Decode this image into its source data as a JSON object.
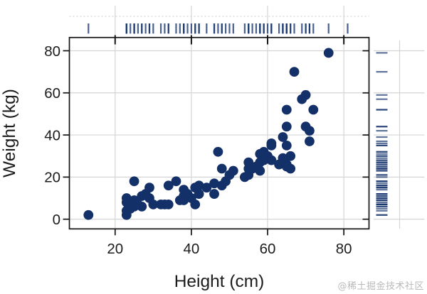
{
  "chart_data": {
    "type": "scatter",
    "title": "",
    "xlabel": "Height (cm)",
    "ylabel": "Weight (kg)",
    "x_ticks": [
      20,
      40,
      60,
      80
    ],
    "y_ticks": [
      0,
      20,
      40,
      60,
      80
    ],
    "xlim": [
      8,
      86.6
    ],
    "ylim": [
      -4.6,
      86.3
    ],
    "grid": true,
    "legend": "none",
    "marginal_rugs": [
      "top",
      "right"
    ],
    "point_color": "#143069",
    "rug_color": "#1c3a72",
    "grid_color": "#d5d5d5",
    "axis_color": "#151515",
    "label_color": "#1c1c1c",
    "points": [
      [
        13,
        2
      ],
      [
        23,
        2
      ],
      [
        23,
        4
      ],
      [
        23,
        8
      ],
      [
        23,
        10
      ],
      [
        24,
        5
      ],
      [
        25,
        6
      ],
      [
        25,
        9
      ],
      [
        25,
        18
      ],
      [
        26,
        7
      ],
      [
        27,
        6
      ],
      [
        27,
        11
      ],
      [
        28,
        12
      ],
      [
        29,
        10
      ],
      [
        29,
        15
      ],
      [
        30,
        7
      ],
      [
        32,
        7
      ],
      [
        33,
        7
      ],
      [
        34,
        7
      ],
      [
        34,
        16
      ],
      [
        36,
        18
      ],
      [
        37,
        9
      ],
      [
        38,
        9
      ],
      [
        38,
        11
      ],
      [
        38,
        14
      ],
      [
        39,
        12
      ],
      [
        40,
        10
      ],
      [
        41,
        7
      ],
      [
        41,
        15
      ],
      [
        42,
        12
      ],
      [
        42,
        16
      ],
      [
        44,
        15
      ],
      [
        46,
        12
      ],
      [
        46,
        17
      ],
      [
        47,
        32
      ],
      [
        48,
        16
      ],
      [
        48,
        24
      ],
      [
        49,
        18
      ],
      [
        50,
        21
      ],
      [
        51,
        23
      ],
      [
        54,
        20
      ],
      [
        55,
        21
      ],
      [
        55,
        24
      ],
      [
        55,
        27
      ],
      [
        56,
        24
      ],
      [
        57,
        25
      ],
      [
        58,
        23
      ],
      [
        58,
        27
      ],
      [
        58,
        31
      ],
      [
        59,
        28
      ],
      [
        59,
        32
      ],
      [
        60,
        30
      ],
      [
        61,
        28
      ],
      [
        61,
        35
      ],
      [
        61,
        36
      ],
      [
        63,
        26
      ],
      [
        64,
        27
      ],
      [
        64,
        29
      ],
      [
        64,
        39
      ],
      [
        65,
        25
      ],
      [
        65,
        26
      ],
      [
        65,
        35
      ],
      [
        65,
        44
      ],
      [
        65,
        52
      ],
      [
        66,
        24
      ],
      [
        66,
        30
      ],
      [
        67,
        70
      ],
      [
        69,
        57
      ],
      [
        70,
        44
      ],
      [
        70,
        59
      ],
      [
        71,
        37
      ],
      [
        71,
        42
      ],
      [
        72,
        52
      ],
      [
        76,
        79
      ]
    ],
    "rug_top_extra_x": [
      81
    ]
  },
  "watermark": {
    "text": "@稀土掘金技术社区",
    "color": "#b9b9b9"
  }
}
